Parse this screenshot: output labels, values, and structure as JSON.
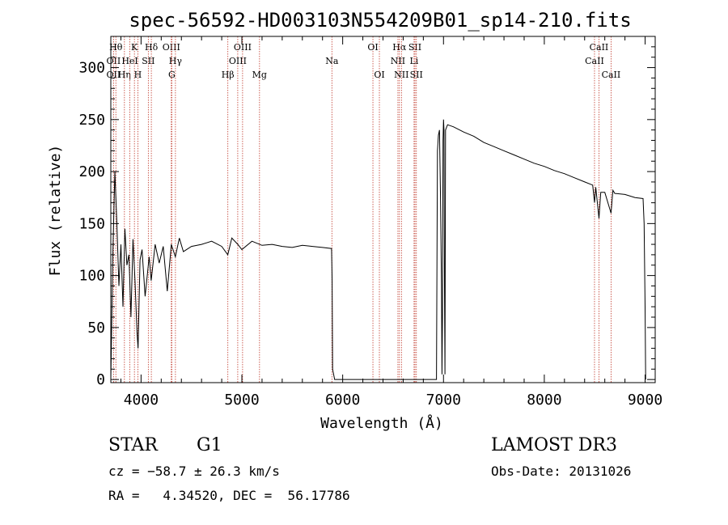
{
  "chart_data": {
    "type": "line",
    "title": "spec-56592-HD003103N554209B01_sp14-210.fits",
    "xlabel": "Wavelength (Å)",
    "ylabel": "Flux (relative)",
    "xlim": [
      3700,
      9100
    ],
    "ylim": [
      -3,
      330
    ],
    "x_ticks": [
      4000,
      5000,
      6000,
      7000,
      8000,
      9000
    ],
    "y_ticks": [
      0,
      50,
      100,
      150,
      200,
      250,
      300
    ],
    "series": [
      {
        "name": "flux",
        "x": [
          3700,
          3720,
          3740,
          3760,
          3780,
          3800,
          3820,
          3840,
          3860,
          3880,
          3900,
          3920,
          3940,
          3960,
          3970,
          3990,
          4010,
          4040,
          4080,
          4100,
          4140,
          4180,
          4220,
          4260,
          4300,
          4340,
          4380,
          4420,
          4500,
          4600,
          4700,
          4800,
          4860,
          4900,
          4960,
          5000,
          5100,
          5200,
          5300,
          5400,
          5500,
          5600,
          5700,
          5800,
          5890,
          5895,
          5900,
          5920,
          5940,
          6000,
          6500,
          6900,
          6930,
          6940,
          6950,
          6960,
          6970,
          6980,
          6985,
          6990,
          6995,
          7000,
          7005,
          7010,
          7015,
          7020,
          7040,
          7100,
          7200,
          7300,
          7400,
          7500,
          7600,
          7700,
          7800,
          7900,
          8000,
          8100,
          8200,
          8300,
          8400,
          8480,
          8498,
          8510,
          8542,
          8560,
          8600,
          8662,
          8680,
          8700,
          8800,
          8900,
          8980,
          8990,
          9000,
          9005
        ],
        "y": [
          0,
          120,
          200,
          150,
          90,
          130,
          70,
          145,
          110,
          120,
          60,
          135,
          95,
          45,
          30,
          115,
          125,
          80,
          118,
          95,
          130,
          112,
          128,
          85,
          130,
          118,
          136,
          123,
          128,
          130,
          133,
          128,
          120,
          136,
          130,
          125,
          133,
          129,
          130,
          128,
          127,
          129,
          128,
          127,
          126,
          95,
          10,
          0,
          0,
          0,
          0,
          0,
          0,
          220,
          235,
          240,
          180,
          90,
          5,
          60,
          230,
          250,
          240,
          90,
          5,
          240,
          245,
          243,
          238,
          234,
          228,
          224,
          220,
          216,
          212,
          208,
          205,
          201,
          198,
          194,
          190,
          187,
          170,
          185,
          155,
          180,
          180,
          160,
          182,
          179,
          178,
          175,
          174,
          150,
          70,
          0
        ]
      }
    ],
    "line_markers": [
      {
        "label": "OII",
        "x": 3727,
        "row": 2
      },
      {
        "label": "Hθ",
        "x": 3750,
        "row": 1
      },
      {
        "label": "OII",
        "x": 3727,
        "row": 3
      },
      {
        "label": "Hη",
        "x": 3835,
        "row": 3
      },
      {
        "label": "HeI",
        "x": 3889,
        "row": 2
      },
      {
        "label": "K",
        "x": 3934,
        "row": 1
      },
      {
        "label": "H",
        "x": 3968,
        "row": 3
      },
      {
        "label": "SII",
        "x": 4072,
        "row": 2
      },
      {
        "label": "Hδ",
        "x": 4102,
        "row": 1
      },
      {
        "label": "OIII",
        "x": 4300,
        "row": 1
      },
      {
        "label": "Hγ",
        "x": 4341,
        "row": 2
      },
      {
        "label": "G",
        "x": 4305,
        "row": 3
      },
      {
        "label": "Hβ",
        "x": 4861,
        "row": 3
      },
      {
        "label": "OIII",
        "x": 5007,
        "row": 1
      },
      {
        "label": "OIII",
        "x": 4959,
        "row": 2
      },
      {
        "label": "Mg",
        "x": 5175,
        "row": 3
      },
      {
        "label": "Na",
        "x": 5893,
        "row": 2
      },
      {
        "label": "OI",
        "x": 6300,
        "row": 1
      },
      {
        "label": "OI",
        "x": 6364,
        "row": 3
      },
      {
        "label": "Hα",
        "x": 6563,
        "row": 1
      },
      {
        "label": "NII",
        "x": 6548,
        "row": 2
      },
      {
        "label": "NII",
        "x": 6583,
        "row": 3
      },
      {
        "label": "SII",
        "x": 6717,
        "row": 1
      },
      {
        "label": "Li",
        "x": 6708,
        "row": 2
      },
      {
        "label": "SII",
        "x": 6731,
        "row": 3
      },
      {
        "label": "CaII",
        "x": 8542,
        "row": 1
      },
      {
        "label": "CaII",
        "x": 8498,
        "row": 2
      },
      {
        "label": "CaII",
        "x": 8662,
        "row": 3
      }
    ]
  },
  "info": {
    "object_type": "STAR",
    "subclass": "G1",
    "survey": "LAMOST DR3",
    "cz": "cz = −58.7 ± 26.3 km/s",
    "obs_date": "Obs-Date: 20131026",
    "coords": "RA =   4.34520, DEC =  56.17786"
  },
  "colors": {
    "spectrum": "#000000",
    "markers": "#c0392b",
    "axes": "#000000"
  }
}
